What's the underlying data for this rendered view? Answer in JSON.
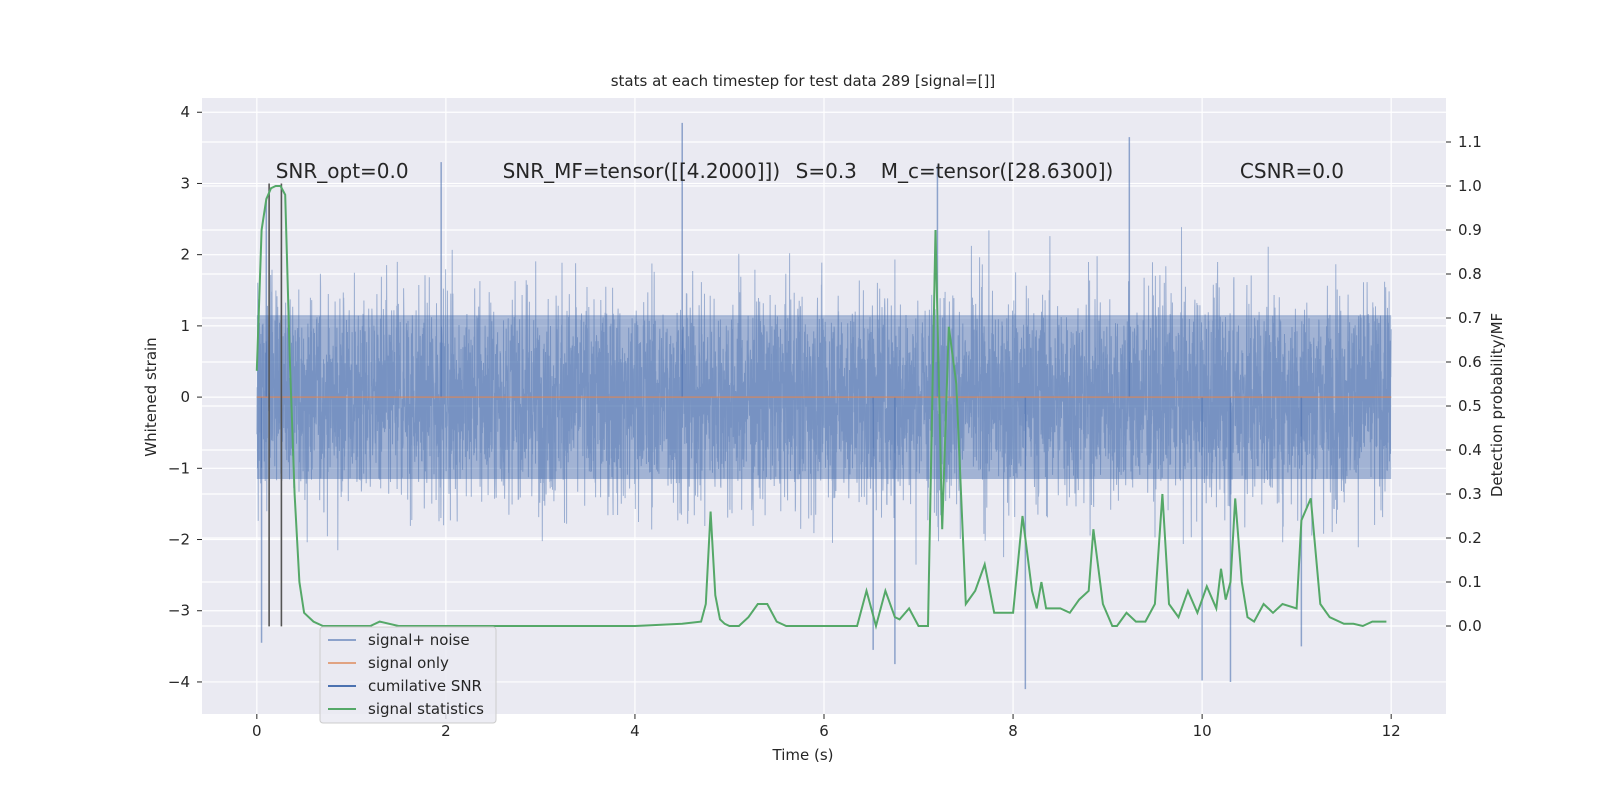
{
  "chart_data": {
    "type": "line",
    "title": "stats at each timestep for test data 289 [signal=[]]",
    "xlabel": "Time (s)",
    "ylabel": "Whitened strain",
    "y2label": "Detection probability/MF",
    "xlim": [
      -0.58,
      12.58
    ],
    "ylim": [
      -4.45,
      4.2
    ],
    "y2lim": [
      -0.2,
      1.2
    ],
    "x_ticks": [
      0,
      2,
      4,
      6,
      8,
      10,
      12
    ],
    "y_ticks": [
      -4,
      -3,
      -2,
      -1,
      0,
      1,
      2,
      3,
      4
    ],
    "y2_ticks": [
      0.0,
      0.1,
      0.2,
      0.3,
      0.4,
      0.5,
      0.6,
      0.7,
      0.8,
      0.9,
      1.0,
      1.1
    ],
    "grid": true,
    "legend_position": "lower-left",
    "colors": {
      "background": "#eaeaf2",
      "grid": "#ffffff",
      "noise": "#4c72b0",
      "signal_only": "#dd8452",
      "cumulative_snr": "#4c72b0",
      "statistics": "#55a868",
      "markers": "#555555"
    },
    "annotations": [
      {
        "text": "SNR_opt=0.0",
        "x": 0.2,
        "y": 3.08
      },
      {
        "text": "SNR_MF=tensor([[4.2000]])",
        "x": 2.6,
        "y": 3.08
      },
      {
        "text": "S=0.3",
        "x": 5.7,
        "y": 3.08
      },
      {
        "text": "M_c=tensor([28.6300])",
        "x": 6.6,
        "y": 3.08
      },
      {
        "text": "CSNR=0.0",
        "x": 10.4,
        "y": 3.08
      }
    ],
    "series": [
      {
        "name": "signal+ noise",
        "axis": "left",
        "style": "dense-noise",
        "x_range": [
          0,
          12
        ],
        "core_amplitude": 1.15,
        "extreme_points": [
          {
            "x": 0.05,
            "y": -3.45
          },
          {
            "x": 0.1,
            "y": 2.8
          },
          {
            "x": 4.5,
            "y": 3.85
          },
          {
            "x": 6.52,
            "y": -3.55
          },
          {
            "x": 6.75,
            "y": -3.75
          },
          {
            "x": 7.2,
            "y": 3.25
          },
          {
            "x": 8.13,
            "y": -4.1
          },
          {
            "x": 9.23,
            "y": 3.65
          },
          {
            "x": 10.0,
            "y": -3.98
          },
          {
            "x": 10.3,
            "y": -4.0
          },
          {
            "x": 11.05,
            "y": -3.5
          },
          {
            "x": 1.95,
            "y": 3.3
          }
        ]
      },
      {
        "name": "signal only",
        "axis": "left",
        "x": [
          0,
          12
        ],
        "y": [
          0,
          0
        ]
      },
      {
        "name": "cumilative SNR",
        "axis": "left",
        "x": [],
        "y": []
      },
      {
        "name": "signal statistics",
        "axis": "right",
        "x": [
          0.0,
          0.05,
          0.1,
          0.15,
          0.2,
          0.25,
          0.3,
          0.35,
          0.4,
          0.45,
          0.5,
          0.6,
          0.7,
          0.8,
          1.0,
          1.2,
          1.3,
          1.5,
          1.7,
          1.9,
          2.0,
          2.5,
          3.0,
          3.5,
          4.0,
          4.5,
          4.7,
          4.75,
          4.8,
          4.85,
          4.9,
          4.95,
          5.0,
          5.1,
          5.2,
          5.3,
          5.4,
          5.5,
          5.6,
          5.7,
          5.8,
          6.0,
          6.2,
          6.35,
          6.45,
          6.55,
          6.65,
          6.75,
          6.8,
          6.9,
          7.0,
          7.1,
          7.18,
          7.25,
          7.32,
          7.4,
          7.5,
          7.6,
          7.7,
          7.8,
          8.0,
          8.1,
          8.2,
          8.25,
          8.3,
          8.35,
          8.5,
          8.6,
          8.7,
          8.8,
          8.85,
          8.95,
          9.05,
          9.1,
          9.2,
          9.3,
          9.4,
          9.5,
          9.58,
          9.65,
          9.75,
          9.85,
          9.95,
          10.05,
          10.15,
          10.2,
          10.25,
          10.3,
          10.35,
          10.42,
          10.48,
          10.55,
          10.65,
          10.75,
          10.85,
          11.0,
          11.05,
          11.15,
          11.25,
          11.35,
          11.5,
          11.6,
          11.7,
          11.8,
          11.9,
          11.95
        ],
        "y": [
          0.58,
          0.9,
          0.97,
          0.995,
          1.0,
          1.0,
          0.98,
          0.6,
          0.3,
          0.1,
          0.03,
          0.01,
          0.0,
          0.0,
          0.0,
          0.0,
          0.01,
          0.0,
          0.0,
          0.0,
          0.0,
          0.0,
          0.0,
          0.0,
          0.0,
          0.005,
          0.01,
          0.05,
          0.26,
          0.07,
          0.015,
          0.005,
          0.0,
          0.0,
          0.02,
          0.05,
          0.05,
          0.01,
          0.0,
          0.0,
          0.0,
          0.0,
          0.0,
          0.0,
          0.08,
          0.0,
          0.08,
          0.02,
          0.015,
          0.04,
          0.0,
          0.0,
          0.9,
          0.22,
          0.68,
          0.55,
          0.05,
          0.08,
          0.14,
          0.03,
          0.03,
          0.25,
          0.08,
          0.04,
          0.1,
          0.04,
          0.04,
          0.03,
          0.06,
          0.08,
          0.22,
          0.05,
          0.0,
          0.0,
          0.03,
          0.01,
          0.01,
          0.05,
          0.3,
          0.05,
          0.02,
          0.08,
          0.03,
          0.09,
          0.04,
          0.13,
          0.06,
          0.1,
          0.29,
          0.1,
          0.02,
          0.01,
          0.05,
          0.03,
          0.05,
          0.04,
          0.24,
          0.29,
          0.05,
          0.02,
          0.005,
          0.005,
          0.0,
          0.01,
          0.01,
          0.01
        ]
      }
    ],
    "vlines": [
      {
        "x": 0.13,
        "y_from": -3.22,
        "y_to": 3.0
      },
      {
        "x": 0.26,
        "y_from": -3.22,
        "y_to": 3.0
      }
    ],
    "legend": [
      "signal+ noise",
      "signal only",
      "cumilative SNR",
      "signal statistics"
    ]
  }
}
